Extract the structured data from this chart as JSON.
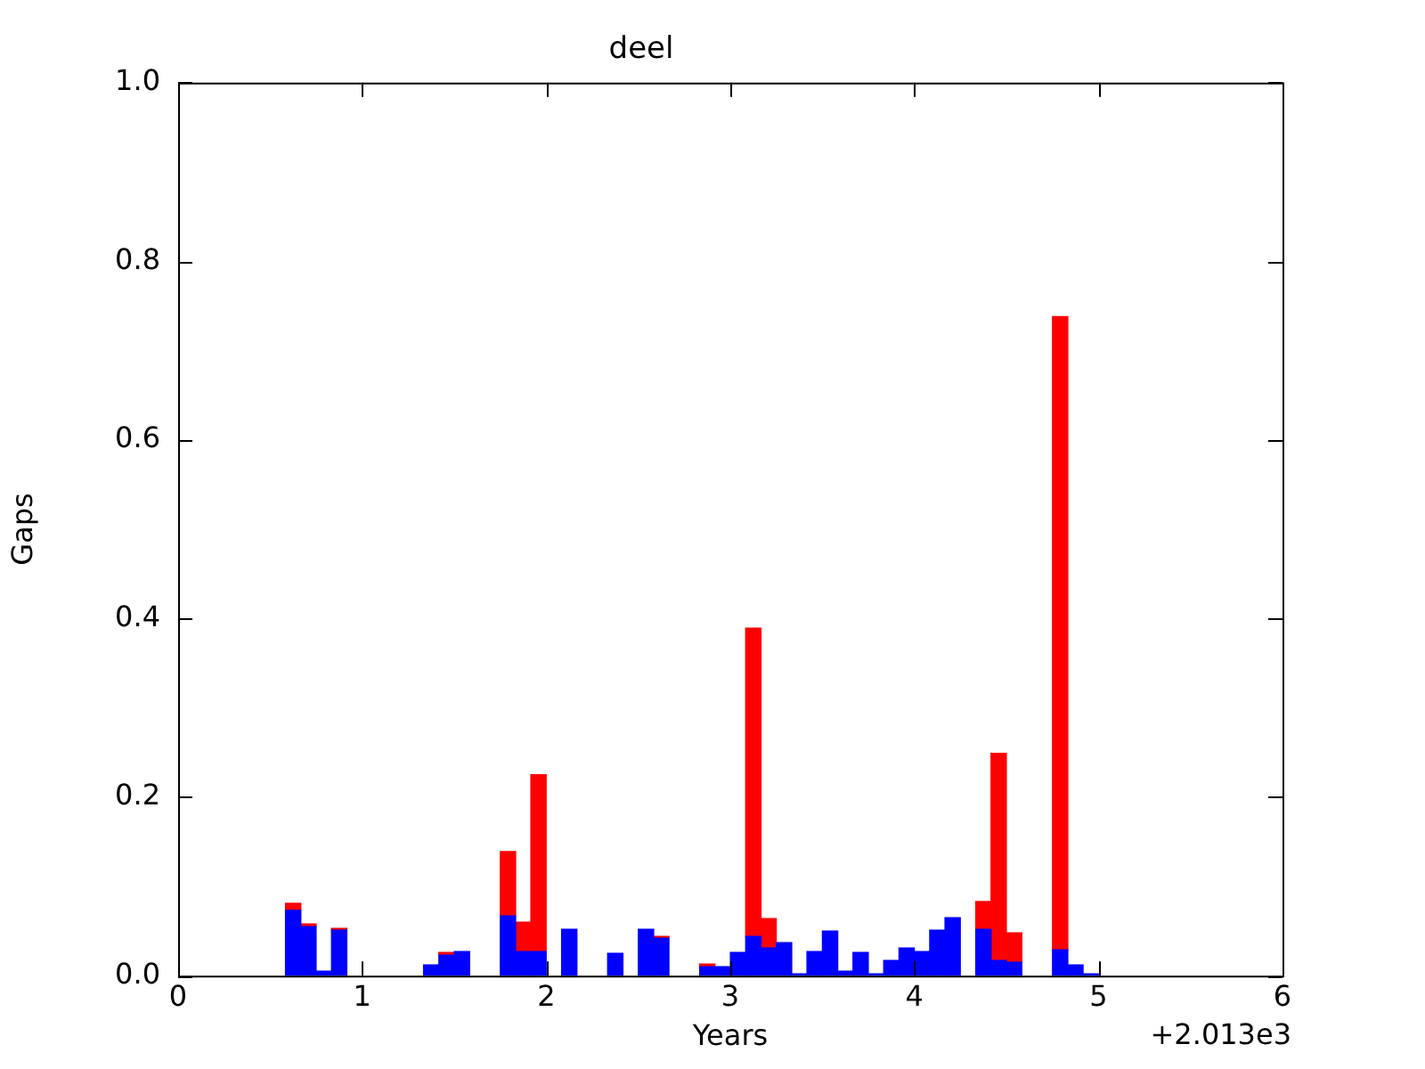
{
  "chart_data": {
    "type": "bar",
    "title": "deel",
    "xlabel": "Years",
    "ylabel": "Gaps",
    "x": [
      0.625,
      0.708,
      0.792,
      0.875,
      0.958,
      1.042,
      1.125,
      1.208,
      1.292,
      1.375,
      1.458,
      1.542,
      1.625,
      1.708,
      1.792,
      1.875,
      1.958,
      2.042,
      2.125,
      2.208,
      2.292,
      2.375,
      2.458,
      2.542,
      2.625,
      2.708,
      2.792,
      2.875,
      2.958,
      3.042,
      3.125,
      3.208,
      3.292,
      3.375,
      3.458,
      3.542,
      3.625,
      3.708,
      3.792,
      3.875,
      3.958,
      4.042,
      4.125,
      4.208,
      4.292,
      4.375,
      4.458,
      4.542,
      4.625,
      4.708,
      4.792,
      4.875,
      4.958
    ],
    "series": [
      {
        "color": "#0000ff",
        "values": [
          0.073,
          0.055,
          0.005,
          0.051,
          null,
          null,
          null,
          null,
          null,
          0.012,
          0.023,
          0.027,
          null,
          null,
          0.067,
          0.027,
          0.027,
          null,
          0.052,
          null,
          null,
          0.025,
          null,
          0.052,
          0.042,
          null,
          null,
          0.01,
          0.01,
          0.026,
          0.044,
          0.031,
          0.037,
          0.002,
          0.027,
          0.05,
          0.005,
          0.026,
          0.002,
          0.017,
          0.031,
          0.027,
          0.051,
          0.065,
          null,
          0.052,
          0.017,
          0.015,
          null,
          null,
          0.029,
          0.012,
          0.002
        ]
      },
      {
        "color": "#ff0000",
        "values": [
          0.008,
          0.003,
          null,
          0.002,
          null,
          null,
          null,
          null,
          null,
          null,
          0.003,
          null,
          null,
          null,
          0.072,
          0.033,
          0.198,
          null,
          null,
          null,
          null,
          null,
          null,
          null,
          0.002,
          null,
          null,
          0.003,
          null,
          null,
          0.345,
          0.033,
          null,
          null,
          null,
          null,
          null,
          null,
          null,
          null,
          null,
          null,
          null,
          null,
          null,
          0.031,
          0.232,
          0.033,
          null,
          null,
          0.709,
          null,
          null
        ]
      }
    ],
    "stacked": true,
    "xlim": [
      0,
      6
    ],
    "xticks": [
      0,
      1,
      2,
      3,
      4,
      5,
      6
    ],
    "ylim": [
      0,
      1
    ],
    "yticks": [
      {
        "value": 0,
        "label": "0.0"
      },
      0.2,
      0.4,
      0.6,
      0.8,
      {
        "value": 1,
        "label": "1.0"
      }
    ],
    "annotations": [
      "+2.013e3"
    ]
  }
}
